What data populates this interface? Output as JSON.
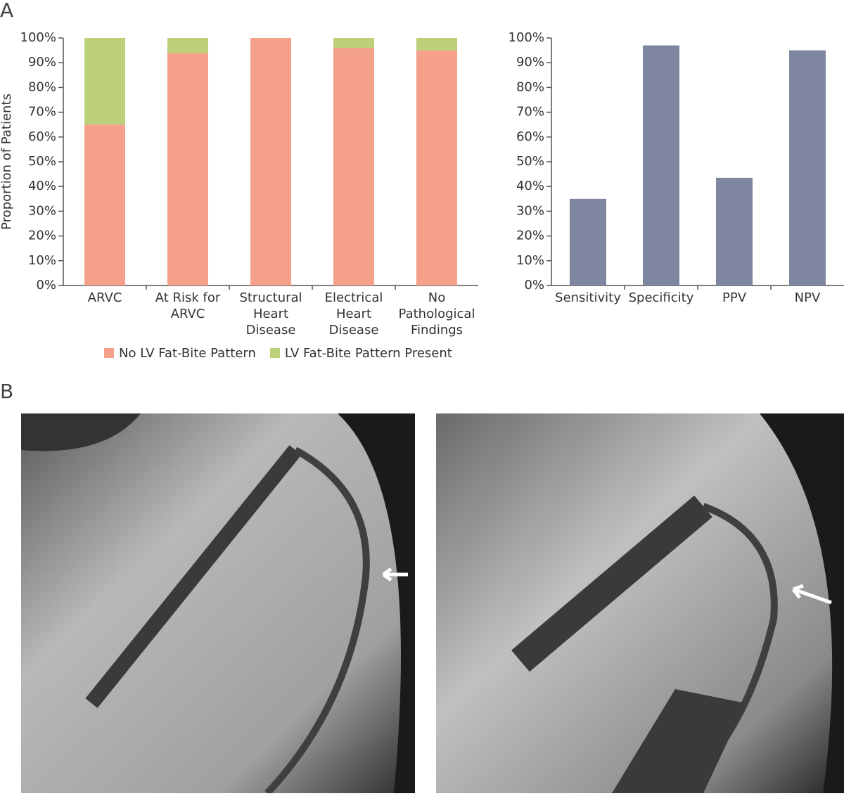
{
  "panel_labels": [
    "A",
    "B"
  ],
  "chart_data": [
    {
      "type": "bar",
      "ylabel": "Proportion of Patients",
      "categories": [
        "ARVC",
        "At Risk for ARVC",
        "Structural Heart Disease",
        "Electrical Heart Disease",
        "No Pathological Findings"
      ],
      "series": [
        {
          "name": "No LV Fat-Bite Pattern",
          "color": "#f4a08a",
          "values": [
            65,
            94,
            100,
            96,
            95
          ]
        },
        {
          "name": "LV Fat-Bite Pattern Present",
          "color": "#bcd07a",
          "values": [
            35,
            6,
            0,
            4,
            5
          ]
        }
      ],
      "stacked": true,
      "ylim": [
        0,
        100
      ],
      "yticks": [
        {
          "value": 0,
          "label": "0%"
        },
        {
          "value": 10,
          "label": "10%"
        },
        {
          "value": 20,
          "label": "20%"
        },
        {
          "value": 30,
          "label": "30%"
        },
        {
          "value": 40,
          "label": "40%"
        },
        {
          "value": 50,
          "label": "50%"
        },
        {
          "value": 60,
          "label": "60%"
        },
        {
          "value": 70,
          "label": "70%"
        },
        {
          "value": 80,
          "label": "80%"
        },
        {
          "value": 90,
          "label": "90%"
        },
        {
          "value": 100,
          "label": "100%"
        }
      ],
      "legend": "bottom"
    },
    {
      "type": "bar",
      "categories": [
        "Sensitivity",
        "Specificity",
        "PPV",
        "NPV"
      ],
      "values": [
        35,
        97,
        43.5,
        95
      ],
      "color": "#7f87a0",
      "ylim": [
        0,
        100
      ],
      "yticks": [
        {
          "value": 0,
          "label": "0%"
        },
        {
          "value": 10,
          "label": "10%"
        },
        {
          "value": 20,
          "label": "20%"
        },
        {
          "value": 30,
          "label": "30%"
        },
        {
          "value": 40,
          "label": "40%"
        },
        {
          "value": 50,
          "label": "50%"
        },
        {
          "value": 60,
          "label": "60%"
        },
        {
          "value": 70,
          "label": "70%"
        },
        {
          "value": 80,
          "label": "80%"
        },
        {
          "value": 90,
          "label": "90%"
        },
        {
          "value": 100,
          "label": "100%"
        }
      ]
    }
  ]
}
